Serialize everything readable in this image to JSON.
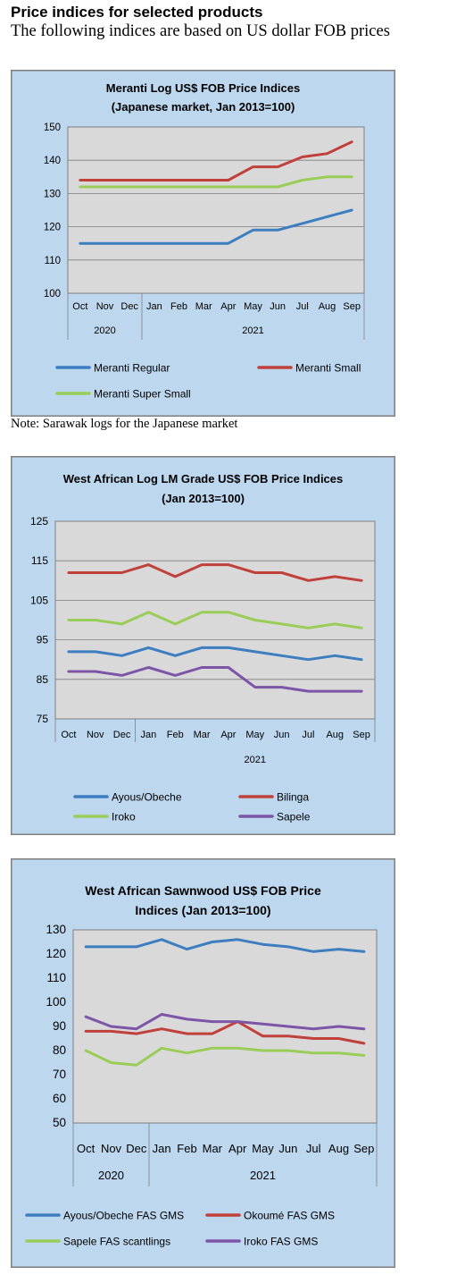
{
  "page": {
    "title": "Price indices for selected products",
    "subtitle": "The following indices are based on US dollar FOB prices",
    "note": "Note: Sarawak logs for the Japanese market"
  },
  "colors": {
    "chart_bg": "#bdd7ee",
    "plot_bg": "#d9d9d9",
    "border": "#7f7f7f",
    "grid": "#7f7f7f",
    "blue": "#3c7ebf",
    "red": "#c0403a",
    "green": "#9acd58",
    "purple": "#7d55a6"
  },
  "chart_data": [
    {
      "type": "line",
      "title_lines": [
        "Meranti Log US$ FOB Price Indices",
        "(Japanese market, Jan 2013=100)"
      ],
      "categories": [
        "Oct",
        "Nov",
        "Dec",
        "Jan",
        "Feb",
        "Mar",
        "Apr",
        "May",
        "Jun",
        "Jul",
        "Aug",
        "Sep"
      ],
      "year_groups": [
        {
          "label": "2020",
          "count": 3
        },
        {
          "label": "2021",
          "count": 9
        }
      ],
      "ylim": [
        100,
        150
      ],
      "yticks": [
        100,
        110,
        120,
        130,
        140,
        150
      ],
      "grid": true,
      "legend_placement": "bottom",
      "series": [
        {
          "name": "Meranti Regular",
          "color": "#3c7ebf",
          "values": [
            115,
            115,
            115,
            115,
            115,
            115,
            115,
            119,
            119,
            121,
            123,
            125
          ]
        },
        {
          "name": "Meranti Small",
          "color": "#c0403a",
          "values": [
            134,
            134,
            134,
            134,
            134,
            134,
            134,
            138,
            138,
            141,
            142,
            145.5
          ]
        },
        {
          "name": "Meranti Super Small",
          "color": "#9acd58",
          "values": [
            132,
            132,
            132,
            132,
            132,
            132,
            132,
            132,
            132,
            134,
            135,
            135
          ]
        }
      ]
    },
    {
      "type": "line",
      "title_lines": [
        "West African Log LM Grade US$ FOB Price Indices",
        "(Jan 2013=100)"
      ],
      "categories": [
        "Oct",
        "Nov",
        "Dec",
        "Jan",
        "Feb",
        "Mar",
        "Apr",
        "May",
        "Jun",
        "Jul",
        "Aug",
        "Sep"
      ],
      "year_groups": [
        {
          "label": "",
          "count": 3
        },
        {
          "label": "2021",
          "count": 9
        }
      ],
      "ylim": [
        75,
        125
      ],
      "yticks": [
        75,
        85,
        95,
        105,
        115,
        125
      ],
      "grid": true,
      "legend_placement": "bottom",
      "series": [
        {
          "name": "Ayous/Obeche",
          "color": "#3c7ebf",
          "values": [
            92,
            92,
            91,
            93,
            91,
            93,
            93,
            92,
            91,
            90,
            91,
            90
          ]
        },
        {
          "name": "Bilinga",
          "color": "#c0403a",
          "values": [
            112,
            112,
            112,
            114,
            111,
            114,
            114,
            112,
            112,
            110,
            111,
            110
          ]
        },
        {
          "name": "Iroko",
          "color": "#9acd58",
          "values": [
            100,
            100,
            99,
            102,
            99,
            102,
            102,
            100,
            99,
            98,
            99,
            98
          ]
        },
        {
          "name": "Sapele",
          "color": "#7d55a6",
          "values": [
            87,
            87,
            86,
            88,
            86,
            88,
            88,
            83,
            83,
            82,
            82,
            82
          ]
        }
      ]
    },
    {
      "type": "line",
      "title_lines": [
        "West African Sawnwood US$ FOB Price",
        "Indices (Jan 2013=100)"
      ],
      "categories": [
        "Oct",
        "Nov",
        "Dec",
        "Jan",
        "Feb",
        "Mar",
        "Apr",
        "May",
        "Jun",
        "Jul",
        "Aug",
        "Sep"
      ],
      "year_groups": [
        {
          "label": "2020",
          "count": 3
        },
        {
          "label": "2021",
          "count": 9
        }
      ],
      "ylim": [
        50,
        130
      ],
      "yticks": [
        50,
        60,
        70,
        80,
        90,
        100,
        110,
        120,
        130
      ],
      "grid": false,
      "legend_placement": "bottom",
      "series": [
        {
          "name": "Ayous/Obeche  FAS GMS",
          "color": "#3c7ebf",
          "values": [
            123,
            123,
            123,
            126,
            122,
            125,
            126,
            124,
            123,
            121,
            122,
            121
          ]
        },
        {
          "name": "Okoumé  FAS GMS",
          "color": "#c0403a",
          "values": [
            88,
            88,
            87,
            89,
            87,
            87,
            92,
            86,
            86,
            85,
            85,
            83
          ]
        },
        {
          "name": "Sapele FAS scantlings",
          "color": "#9acd58",
          "values": [
            80,
            75,
            74,
            81,
            79,
            81,
            81,
            80,
            80,
            79,
            79,
            78
          ]
        },
        {
          "name": "Iroko FAS GMS",
          "color": "#7d55a6",
          "values": [
            94,
            90,
            89,
            95,
            93,
            92,
            92,
            91,
            90,
            89,
            90,
            89
          ]
        }
      ]
    }
  ]
}
